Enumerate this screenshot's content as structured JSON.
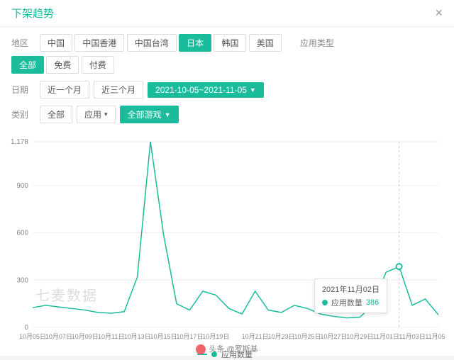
{
  "header": {
    "title": "下架趋势",
    "close": "×"
  },
  "filters": {
    "region_label": "地区",
    "regions": [
      "中国",
      "中国香港",
      "中国台湾",
      "日本",
      "韩国",
      "美国"
    ],
    "region_active": 3,
    "apptype_label": "应用类型",
    "apptypes": [
      "全部",
      "免费",
      "付费"
    ],
    "apptype_active": 0,
    "date_label": "日期",
    "date_buttons": [
      "近一个月",
      "近三个月"
    ],
    "date_range": "2021-10-05~2021-11-05",
    "category_label": "类别",
    "category_all": "全部",
    "category_app": "应用",
    "category_game": "全部游戏"
  },
  "chart": {
    "type": "line",
    "series_name": "应用数量",
    "color": "#1abc9c",
    "grid_color": "#eeeeee",
    "text_color": "#888888",
    "background": "#ffffff",
    "yticks": [
      0,
      300,
      600,
      900,
      1178
    ],
    "ylim": [
      0,
      1178
    ],
    "xlabels": [
      "10月05日",
      "10月07日",
      "10月09日",
      "10月11日",
      "10月13日",
      "10月15日",
      "10月17日",
      "10月19日",
      "10月21日",
      "10月23日",
      "10月25日",
      "10月27日",
      "10月29日",
      "11月01日",
      "11月03日",
      "11月05日"
    ],
    "points": [
      {
        "d": "10-05",
        "v": 125
      },
      {
        "d": "10-06",
        "v": 140
      },
      {
        "d": "10-07",
        "v": 130
      },
      {
        "d": "10-08",
        "v": 120
      },
      {
        "d": "10-09",
        "v": 110
      },
      {
        "d": "10-10",
        "v": 95
      },
      {
        "d": "10-11",
        "v": 90
      },
      {
        "d": "10-12",
        "v": 100
      },
      {
        "d": "10-13",
        "v": 320
      },
      {
        "d": "10-14",
        "v": 1178
      },
      {
        "d": "10-15",
        "v": 590
      },
      {
        "d": "10-16",
        "v": 150
      },
      {
        "d": "10-17",
        "v": 110
      },
      {
        "d": "10-18",
        "v": 230
      },
      {
        "d": "10-19",
        "v": 205
      },
      {
        "d": "10-20",
        "v": 120
      },
      {
        "d": "10-21",
        "v": 85
      },
      {
        "d": "10-22",
        "v": 230
      },
      {
        "d": "10-23",
        "v": 110
      },
      {
        "d": "10-24",
        "v": 95
      },
      {
        "d": "10-25",
        "v": 140
      },
      {
        "d": "10-26",
        "v": 120
      },
      {
        "d": "10-27",
        "v": 85
      },
      {
        "d": "10-28",
        "v": 70
      },
      {
        "d": "10-29",
        "v": 60
      },
      {
        "d": "10-30",
        "v": 65
      },
      {
        "d": "10-31",
        "v": 140
      },
      {
        "d": "11-01",
        "v": 350
      },
      {
        "d": "11-02",
        "v": 386
      },
      {
        "d": "11-03",
        "v": 140
      },
      {
        "d": "11-04",
        "v": 180
      },
      {
        "d": "11-05",
        "v": 80
      }
    ],
    "tooltip": {
      "date": "2021年11月02日",
      "label": "应用数量",
      "value": "386",
      "index": 28
    },
    "watermark": "七麦数据"
  },
  "legend": {
    "label": "应用数量"
  },
  "footer": {
    "text": "头条 @罗斯基"
  }
}
